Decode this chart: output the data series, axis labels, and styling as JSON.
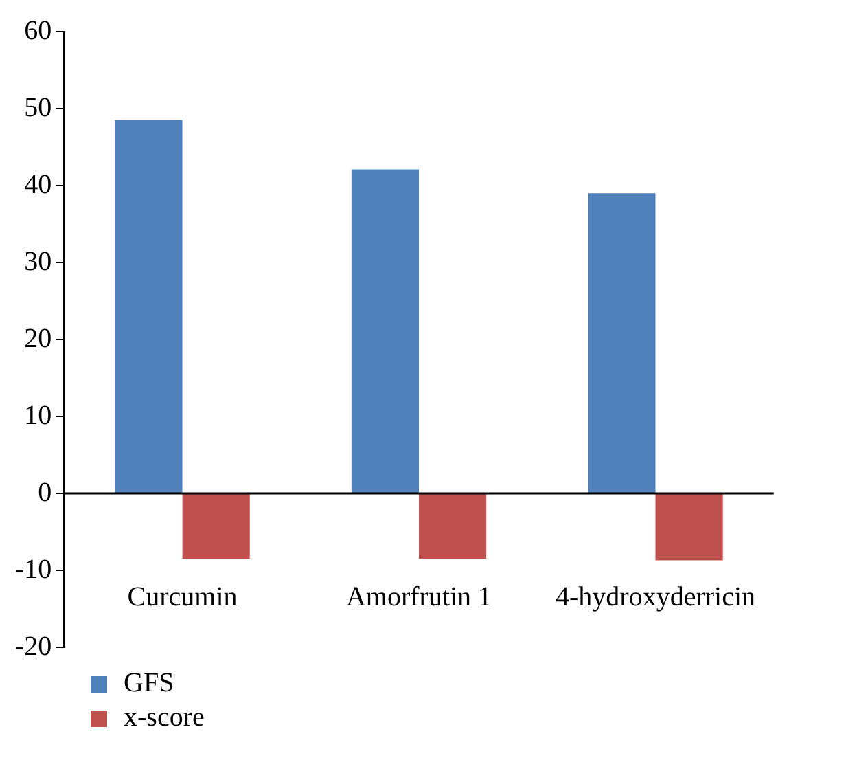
{
  "chart_data": {
    "type": "bar",
    "categories": [
      "Curcumin",
      "Amorfrutin 1",
      "4-hydroxyderricin"
    ],
    "series": [
      {
        "name": "GFS",
        "color": "#4f81bd",
        "values": [
          48.5,
          42.1,
          39.0
        ]
      },
      {
        "name": "x-score",
        "color": "#c0504d",
        "values": [
          -8.5,
          -8.5,
          -8.7
        ]
      }
    ],
    "ref_lines": [
      {
        "axis": "y",
        "value": 0,
        "color": "#000000"
      }
    ],
    "ylim": [
      -20,
      60
    ],
    "yticks": [
      -20,
      -10,
      0,
      10,
      20,
      30,
      40,
      50,
      60
    ],
    "grid": false,
    "legend": "bottom left"
  }
}
